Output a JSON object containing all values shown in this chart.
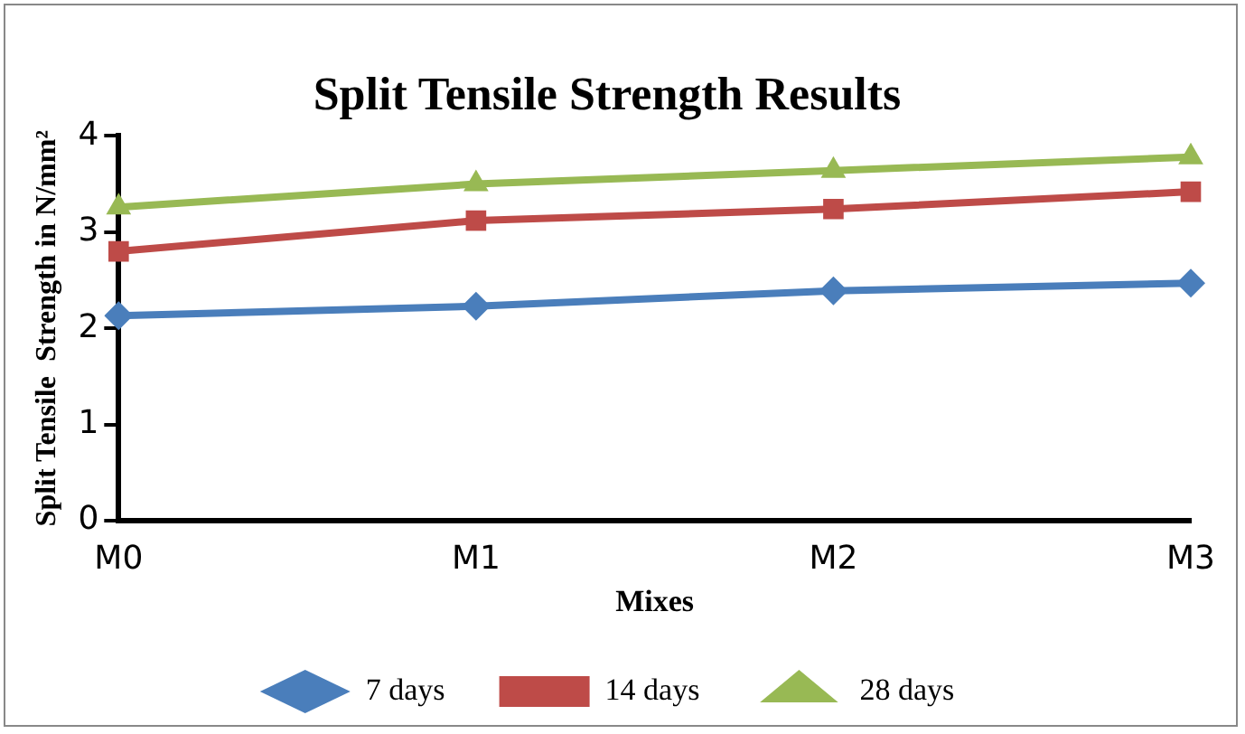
{
  "chart_data": {
    "type": "line",
    "title": "Split Tensile Strength Results",
    "xlabel": "Mixes",
    "ylabel": "Split Tensile  Strength in N/mm²",
    "categories": [
      "M0",
      "M1",
      "M2",
      "M3"
    ],
    "series": [
      {
        "name": "7 days",
        "color": "#4a7ebb",
        "marker": "diamond",
        "values": [
          2.13,
          2.23,
          2.39,
          2.47
        ]
      },
      {
        "name": "14 days",
        "color": "#be4b48",
        "marker": "square",
        "values": [
          2.8,
          3.12,
          3.24,
          3.42
        ]
      },
      {
        "name": "28 days",
        "color": "#98b954",
        "marker": "triangle",
        "values": [
          3.26,
          3.5,
          3.64,
          3.78
        ]
      }
    ],
    "ylim": [
      0,
      4
    ],
    "yticks": [
      0,
      1,
      2,
      3,
      4
    ],
    "grid": false,
    "legend": "bottom"
  }
}
